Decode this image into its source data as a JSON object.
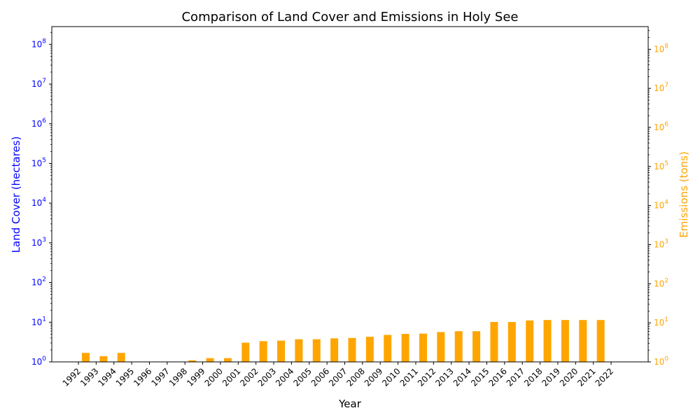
{
  "chart_data": {
    "type": "bar",
    "title": "Comparison of Land Cover and Emissions in Holy See",
    "xlabel": "Year",
    "ylabel_left": "Land Cover (hectares)",
    "ylabel_right": "Emissions (tons)",
    "scale": "log",
    "ylim_left": [
      1,
      280000000
    ],
    "ylim_right": [
      1,
      380000000
    ],
    "left_ticks": [
      "10^0",
      "10^1",
      "10^2",
      "10^3",
      "10^4",
      "10^5",
      "10^6",
      "10^7",
      "10^8"
    ],
    "right_ticks": [
      "10^0",
      "10^1",
      "10^2",
      "10^3",
      "10^4",
      "10^5",
      "10^6",
      "10^7",
      "10^8"
    ],
    "colors": {
      "land_cover": "#0000ff",
      "emissions": "#ffa500",
      "axis_left": "#0000ff",
      "axis_right": "#ffa500"
    },
    "categories": [
      "1992",
      "1993",
      "1994",
      "1995",
      "1996",
      "1997",
      "1998",
      "1999",
      "2000",
      "2001",
      "2002",
      "2003",
      "2004",
      "2005",
      "2006",
      "2007",
      "2008",
      "2009",
      "2010",
      "2011",
      "2012",
      "2013",
      "2014",
      "2015",
      "2016",
      "2017",
      "2018",
      "2019",
      "2020",
      "2021",
      "2022"
    ],
    "series": [
      {
        "key": "land_cover",
        "values": [
          null,
          null,
          null,
          null,
          null,
          null,
          null,
          null,
          null,
          1.05,
          1.05,
          1.05,
          1.05,
          1.05,
          1.05,
          1.05,
          1.05,
          1.05,
          1.05,
          1.05,
          1.05,
          1.05,
          1.05,
          1.6,
          1.6,
          1.6,
          1.6,
          1.6,
          1.45,
          1.45,
          null
        ]
      },
      {
        "key": "emissions",
        "values": [
          1.7,
          1.4,
          1.7,
          null,
          null,
          null,
          1.1,
          1.25,
          1.25,
          3.1,
          3.4,
          3.5,
          3.8,
          3.8,
          4.0,
          4.1,
          4.4,
          4.9,
          5.2,
          5.3,
          5.8,
          6.1,
          6.1,
          10.5,
          10.5,
          11.5,
          11.8,
          11.8,
          11.8,
          11.8,
          null
        ]
      }
    ]
  }
}
